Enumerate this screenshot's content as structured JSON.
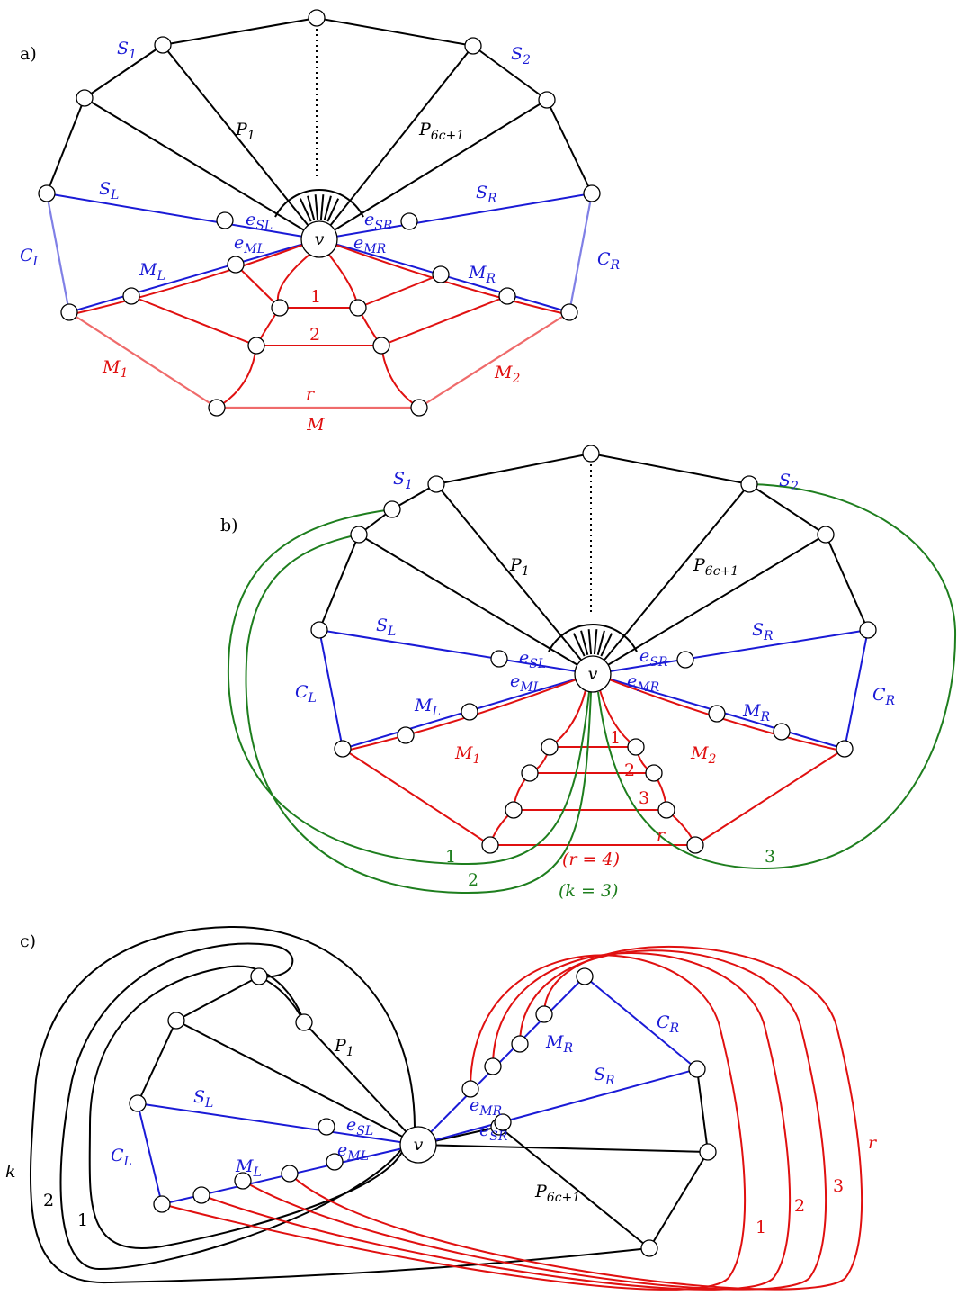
{
  "panels": {
    "a": {
      "panel_label": "a)",
      "labels": {
        "S1": "S1",
        "S2": "S2",
        "P1": "P1",
        "P6c1": "P6c+1",
        "SL": "SL",
        "SR": "SR",
        "eSL": "eSL",
        "eSR": "eSR",
        "eML": "eML",
        "eMR": "eMR",
        "v": "v",
        "CL": "CL",
        "CR": "CR",
        "ML": "ML",
        "MR": "MR",
        "M1": "M1",
        "M2": "M2",
        "M": "M",
        "row1": "1",
        "row2": "2",
        "rowr": "r"
      }
    },
    "b": {
      "panel_label": "b)",
      "labels": {
        "S1": "S1",
        "S2": "S2",
        "P1": "P1",
        "P6c1": "P6c+1",
        "SL": "SL",
        "SR": "SR",
        "eSL": "eSL",
        "eSR": "eSR",
        "eML": "eML",
        "eMR": "eMR",
        "v": "v",
        "CL": "CL",
        "CR": "CR",
        "ML": "ML",
        "MR": "MR",
        "M1": "M1",
        "M2": "M2",
        "row1": "1",
        "row2": "2",
        "row3": "3",
        "rowr": "r",
        "green1": "1",
        "green2": "2",
        "green3": "3",
        "r_eq": "(r = 4)",
        "k_eq": "(k = 3)"
      }
    },
    "c": {
      "panel_label": "c)",
      "labels": {
        "P1": "P1",
        "P6c1": "P6c+1",
        "SL": "SL",
        "SR": "SR",
        "eSL": "eSL",
        "eSR": "eSR",
        "eML": "eML",
        "eMR": "eMR",
        "v": "v",
        "CL": "CL",
        "CR": "CR",
        "ML": "ML",
        "MR": "MR",
        "black_k": "k",
        "black_2": "2",
        "black_1": "1",
        "red_1": "1",
        "red_2": "2",
        "red_3": "3",
        "red_r": "r"
      }
    }
  },
  "colors": {
    "black": "#000000",
    "blue": "#1a1ad6",
    "light_blue": "#8080e6",
    "red": "#e01010",
    "light_red": "#ef6b6b",
    "green": "#1e7e1e"
  }
}
